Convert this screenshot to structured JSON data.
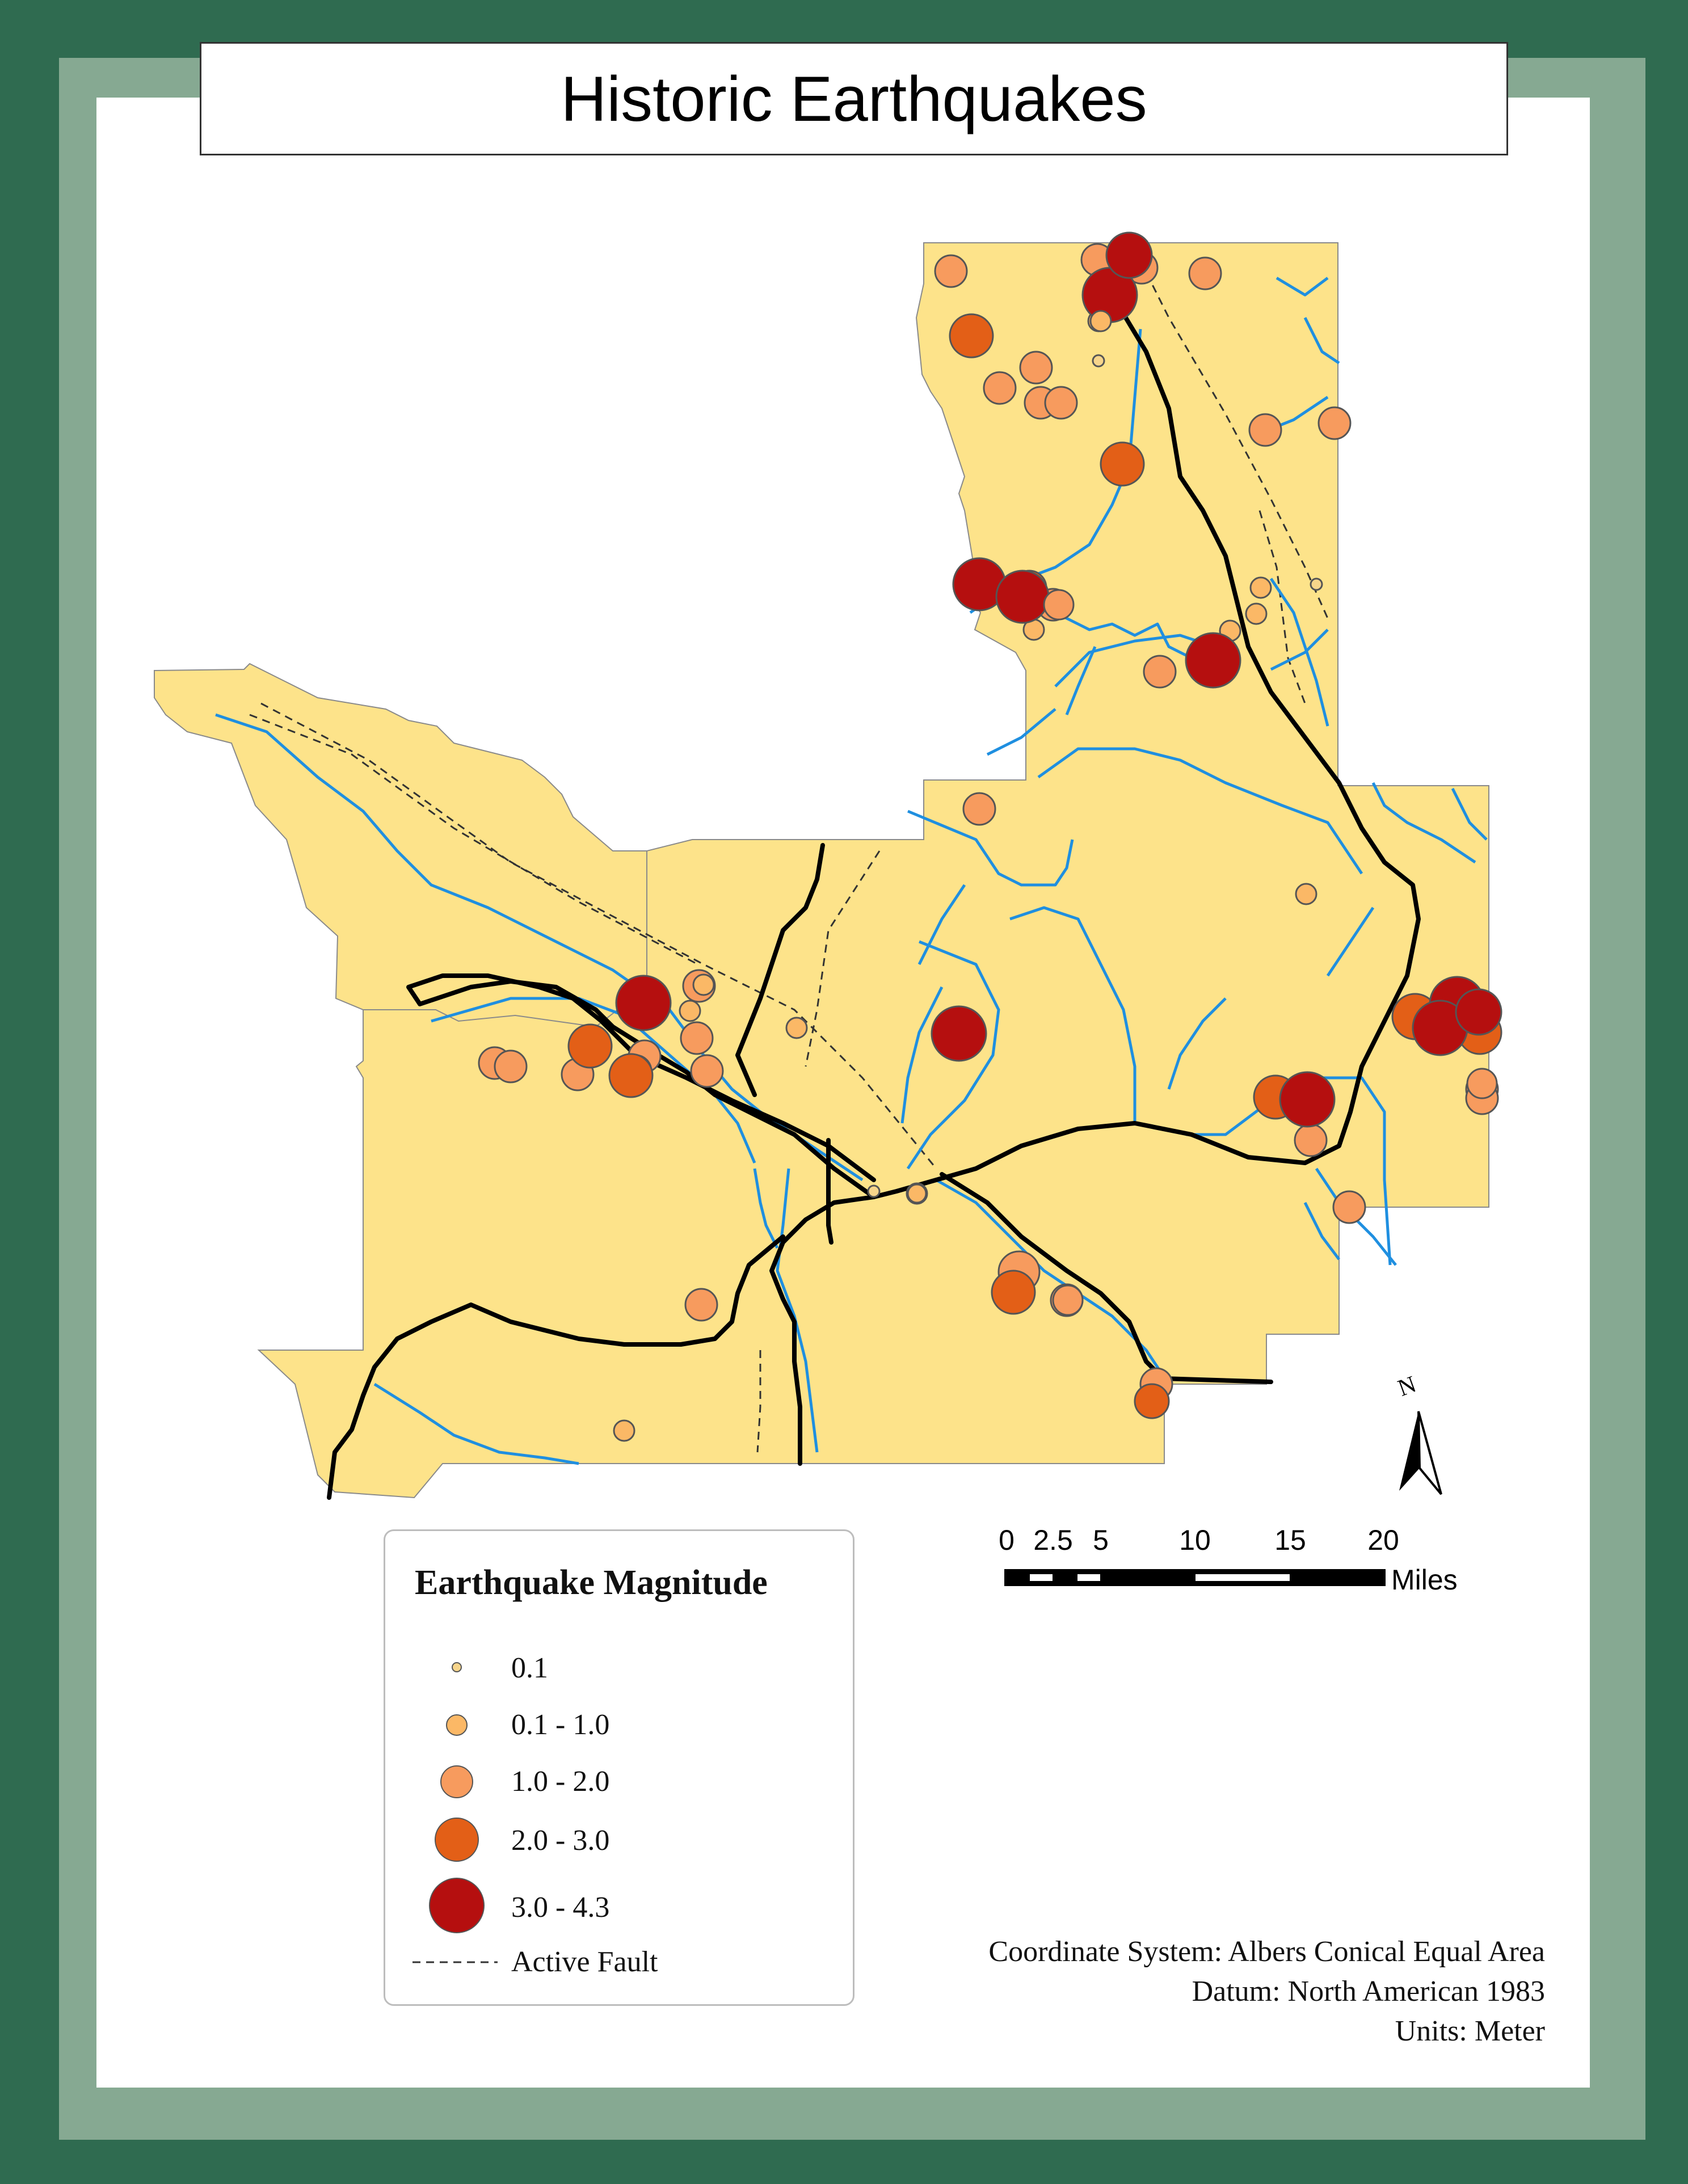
{
  "title": "Historic Earthquakes",
  "legend": {
    "title": "Earthquake Magnitude",
    "classes": [
      {
        "label": "0.1",
        "color": "#f7d58b"
      },
      {
        "label": "0.1 - 1.0",
        "color": "#fbb866"
      },
      {
        "label": "1.0 - 2.0",
        "color": "#f79b5e"
      },
      {
        "label": "2.0 - 3.0",
        "color": "#e35f17"
      },
      {
        "label": "3.0 - 4.3",
        "color": "#b50f0f"
      }
    ],
    "fault_label": "Active Fault"
  },
  "scale_bar": {
    "labels": [
      "0",
      "2.5",
      "5",
      "10",
      "15",
      "20"
    ],
    "units": "Miles"
  },
  "north_arrow": {
    "label": "N",
    "icon": "north-arrow-icon"
  },
  "projection": {
    "coordinate_system": "Coordinate System: Albers Conical Equal Area",
    "datum": "Datum: North American 1983",
    "units": "Units: Meter"
  },
  "colors": {
    "frame_dark": "#2f6b50",
    "frame_light": "#86a992",
    "land": "#fde38a",
    "river": "#1f8fe0",
    "road": "#000000"
  }
}
